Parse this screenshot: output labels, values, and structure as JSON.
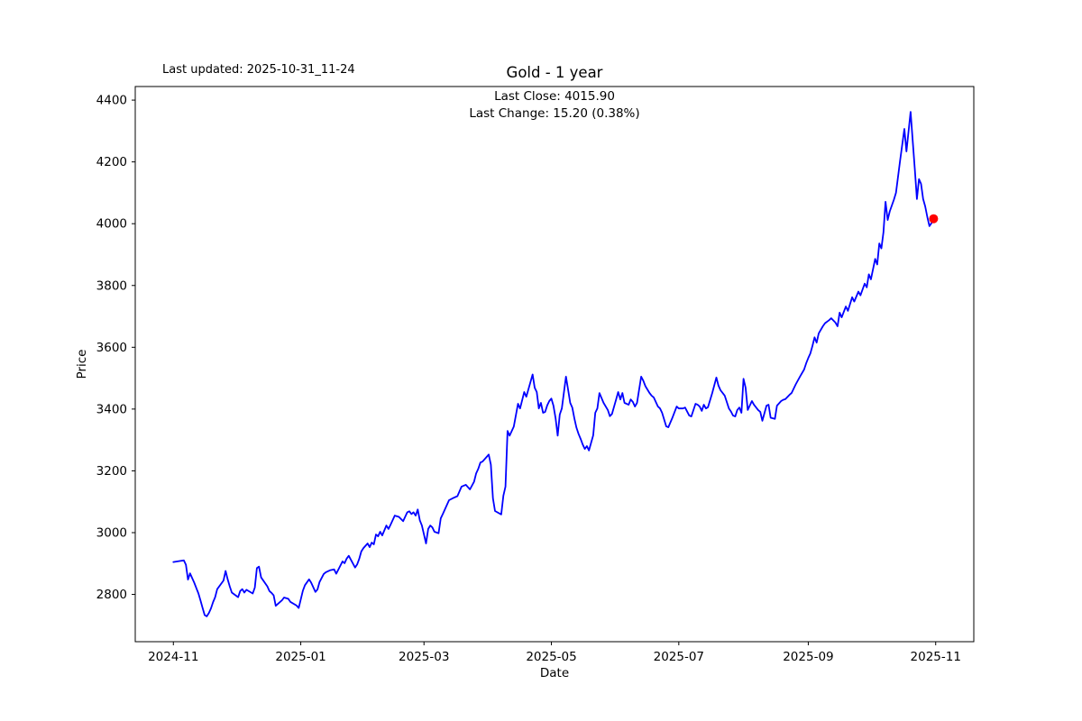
{
  "figure": {
    "last_updated_text": "Last updated: 2025-10-31_11-24",
    "title": "Gold - 1 year",
    "annotation_line1": "Last Close: 4015.90",
    "annotation_line2": "Last Change: 15.20 (0.38%)",
    "xlabel": "Date",
    "ylabel": "Price"
  },
  "chart_data": {
    "type": "line",
    "title": "Gold - 1 year",
    "symbol": "Gold",
    "range_label": "1 year",
    "xlabel": "Date",
    "ylabel": "Price",
    "last_updated": "2025-10-31_11-24",
    "last_close": 4015.9,
    "last_change": 15.2,
    "last_change_pct": 0.38,
    "line_color": "#0000ff",
    "last_point_marker_color": "#ff0000",
    "background_color": "#ffffff",
    "grid": false,
    "legend": "none",
    "x_unit": "days since 2024-11-01",
    "xlim": [
      -18.25,
      383.25
    ],
    "ylim": [
      2647,
      4444
    ],
    "y_ticks": [
      2800,
      3000,
      3200,
      3400,
      3600,
      3800,
      4000,
      4200,
      4400
    ],
    "x_ticks": [
      {
        "label": "2024-11",
        "day": 0
      },
      {
        "label": "2025-01",
        "day": 61
      },
      {
        "label": "2025-03",
        "day": 120
      },
      {
        "label": "2025-05",
        "day": 181
      },
      {
        "label": "2025-07",
        "day": 242
      },
      {
        "label": "2025-09",
        "day": 304
      },
      {
        "label": "2025-11",
        "day": 365
      }
    ],
    "points": [
      [
        0,
        2905
      ],
      [
        3,
        2908
      ],
      [
        5,
        2910
      ],
      [
        6,
        2896
      ],
      [
        7,
        2848
      ],
      [
        8,
        2868
      ],
      [
        10,
        2838
      ],
      [
        11,
        2820
      ],
      [
        12,
        2803
      ],
      [
        13,
        2780
      ],
      [
        14,
        2756
      ],
      [
        15,
        2733
      ],
      [
        16,
        2729
      ],
      [
        17,
        2740
      ],
      [
        18,
        2755
      ],
      [
        19,
        2775
      ],
      [
        20,
        2791
      ],
      [
        21,
        2817
      ],
      [
        24,
        2845
      ],
      [
        25,
        2876
      ],
      [
        26,
        2849
      ],
      [
        27,
        2826
      ],
      [
        28,
        2806
      ],
      [
        31,
        2791
      ],
      [
        32,
        2811
      ],
      [
        33,
        2817
      ],
      [
        34,
        2806
      ],
      [
        35,
        2815
      ],
      [
        38,
        2803
      ],
      [
        39,
        2822
      ],
      [
        40,
        2885
      ],
      [
        41,
        2890
      ],
      [
        42,
        2855
      ],
      [
        45,
        2826
      ],
      [
        46,
        2811
      ],
      [
        47,
        2805
      ],
      [
        48,
        2797
      ],
      [
        49,
        2763
      ],
      [
        52,
        2781
      ],
      [
        53,
        2790
      ],
      [
        55,
        2786
      ],
      [
        56,
        2776
      ],
      [
        59,
        2764
      ],
      [
        60,
        2756
      ],
      [
        62,
        2812
      ],
      [
        63,
        2830
      ],
      [
        65,
        2849
      ],
      [
        66,
        2838
      ],
      [
        68,
        2808
      ],
      [
        69,
        2816
      ],
      [
        70,
        2840
      ],
      [
        72,
        2866
      ],
      [
        73,
        2872
      ],
      [
        75,
        2878
      ],
      [
        77,
        2881
      ],
      [
        78,
        2867
      ],
      [
        81,
        2907
      ],
      [
        82,
        2901
      ],
      [
        83,
        2916
      ],
      [
        84,
        2925
      ],
      [
        87,
        2887
      ],
      [
        88,
        2897
      ],
      [
        89,
        2915
      ],
      [
        90,
        2939
      ],
      [
        91,
        2950
      ],
      [
        93,
        2965
      ],
      [
        94,
        2953
      ],
      [
        95,
        2968
      ],
      [
        96,
        2962
      ],
      [
        97,
        2994
      ],
      [
        98,
        2988
      ],
      [
        99,
        3003
      ],
      [
        100,
        2991
      ],
      [
        102,
        3023
      ],
      [
        103,
        3012
      ],
      [
        104,
        3026
      ],
      [
        106,
        3055
      ],
      [
        108,
        3051
      ],
      [
        110,
        3037
      ],
      [
        112,
        3066
      ],
      [
        113,
        3069
      ],
      [
        114,
        3060
      ],
      [
        115,
        3066
      ],
      [
        116,
        3055
      ],
      [
        117,
        3075
      ],
      [
        118,
        3040
      ],
      [
        119,
        3023
      ],
      [
        121,
        2965
      ],
      [
        122,
        3012
      ],
      [
        123,
        3023
      ],
      [
        124,
        3017
      ],
      [
        125,
        3003
      ],
      [
        127,
        2998
      ],
      [
        128,
        3046
      ],
      [
        129,
        3060
      ],
      [
        131,
        3090
      ],
      [
        132,
        3105
      ],
      [
        134,
        3112
      ],
      [
        136,
        3118
      ],
      [
        138,
        3149
      ],
      [
        139,
        3152
      ],
      [
        140,
        3155
      ],
      [
        142,
        3140
      ],
      [
        144,
        3165
      ],
      [
        145,
        3192
      ],
      [
        146,
        3207
      ],
      [
        147,
        3227
      ],
      [
        148,
        3230
      ],
      [
        150,
        3245
      ],
      [
        151,
        3253
      ],
      [
        152,
        3220
      ],
      [
        153,
        3111
      ],
      [
        154,
        3070
      ],
      [
        157,
        3059
      ],
      [
        158,
        3120
      ],
      [
        159,
        3149
      ],
      [
        160,
        3329
      ],
      [
        161,
        3314
      ],
      [
        163,
        3343
      ],
      [
        165,
        3417
      ],
      [
        166,
        3402
      ],
      [
        168,
        3455
      ],
      [
        169,
        3440
      ],
      [
        172,
        3512
      ],
      [
        173,
        3469
      ],
      [
        174,
        3455
      ],
      [
        175,
        3402
      ],
      [
        176,
        3420
      ],
      [
        177,
        3388
      ],
      [
        178,
        3391
      ],
      [
        179,
        3412
      ],
      [
        180,
        3426
      ],
      [
        181,
        3434
      ],
      [
        182,
        3411
      ],
      [
        183,
        3370
      ],
      [
        184,
        3314
      ],
      [
        185,
        3382
      ],
      [
        186,
        3402
      ],
      [
        188,
        3505
      ],
      [
        189,
        3462
      ],
      [
        190,
        3420
      ],
      [
        191,
        3405
      ],
      [
        192,
        3370
      ],
      [
        193,
        3340
      ],
      [
        194,
        3320
      ],
      [
        195,
        3303
      ],
      [
        196,
        3285
      ],
      [
        197,
        3271
      ],
      [
        198,
        3280
      ],
      [
        199,
        3266
      ],
      [
        201,
        3315
      ],
      [
        202,
        3388
      ],
      [
        203,
        3402
      ],
      [
        204,
        3452
      ],
      [
        206,
        3420
      ],
      [
        208,
        3397
      ],
      [
        209,
        3377
      ],
      [
        210,
        3384
      ],
      [
        212,
        3431
      ],
      [
        213,
        3455
      ],
      [
        214,
        3431
      ],
      [
        215,
        3452
      ],
      [
        216,
        3420
      ],
      [
        218,
        3414
      ],
      [
        219,
        3431
      ],
      [
        220,
        3423
      ],
      [
        221,
        3408
      ],
      [
        222,
        3420
      ],
      [
        224,
        3505
      ],
      [
        225,
        3492
      ],
      [
        226,
        3474
      ],
      [
        228,
        3452
      ],
      [
        229,
        3443
      ],
      [
        230,
        3438
      ],
      [
        232,
        3408
      ],
      [
        233,
        3402
      ],
      [
        234,
        3388
      ],
      [
        236,
        3344
      ],
      [
        237,
        3341
      ],
      [
        239,
        3373
      ],
      [
        241,
        3408
      ],
      [
        242,
        3402
      ],
      [
        244,
        3402
      ],
      [
        245,
        3405
      ],
      [
        247,
        3379
      ],
      [
        248,
        3376
      ],
      [
        250,
        3417
      ],
      [
        251,
        3414
      ],
      [
        252,
        3408
      ],
      [
        253,
        3394
      ],
      [
        254,
        3414
      ],
      [
        255,
        3402
      ],
      [
        256,
        3406
      ],
      [
        258,
        3452
      ],
      [
        260,
        3502
      ],
      [
        261,
        3476
      ],
      [
        262,
        3461
      ],
      [
        263,
        3452
      ],
      [
        264,
        3443
      ],
      [
        266,
        3402
      ],
      [
        267,
        3392
      ],
      [
        268,
        3379
      ],
      [
        269,
        3376
      ],
      [
        270,
        3397
      ],
      [
        271,
        3405
      ],
      [
        272,
        3388
      ],
      [
        273,
        3498
      ],
      [
        274,
        3469
      ],
      [
        275,
        3397
      ],
      [
        277,
        3426
      ],
      [
        278,
        3414
      ],
      [
        280,
        3397
      ],
      [
        281,
        3391
      ],
      [
        282,
        3362
      ],
      [
        284,
        3411
      ],
      [
        285,
        3414
      ],
      [
        286,
        3372
      ],
      [
        288,
        3368
      ],
      [
        289,
        3411
      ],
      [
        291,
        3426
      ],
      [
        292,
        3430
      ],
      [
        293,
        3432
      ],
      [
        295,
        3446
      ],
      [
        296,
        3452
      ],
      [
        298,
        3480
      ],
      [
        300,
        3505
      ],
      [
        302,
        3528
      ],
      [
        303,
        3548
      ],
      [
        304,
        3565
      ],
      [
        305,
        3580
      ],
      [
        306,
        3605
      ],
      [
        307,
        3632
      ],
      [
        308,
        3615
      ],
      [
        309,
        3645
      ],
      [
        311,
        3668
      ],
      [
        312,
        3678
      ],
      [
        314,
        3688
      ],
      [
        315,
        3694
      ],
      [
        317,
        3680
      ],
      [
        318,
        3668
      ],
      [
        319,
        3712
      ],
      [
        320,
        3697
      ],
      [
        322,
        3732
      ],
      [
        323,
        3718
      ],
      [
        325,
        3762
      ],
      [
        326,
        3748
      ],
      [
        328,
        3780
      ],
      [
        329,
        3768
      ],
      [
        331,
        3806
      ],
      [
        332,
        3794
      ],
      [
        333,
        3836
      ],
      [
        334,
        3820
      ],
      [
        336,
        3886
      ],
      [
        337,
        3868
      ],
      [
        338,
        3936
      ],
      [
        339,
        3920
      ],
      [
        340,
        3972
      ],
      [
        341,
        4071
      ],
      [
        342,
        4012
      ],
      [
        343,
        4040
      ],
      [
        345,
        4078
      ],
      [
        346,
        4100
      ],
      [
        348,
        4205
      ],
      [
        350,
        4307
      ],
      [
        351,
        4234
      ],
      [
        353,
        4362
      ],
      [
        354,
        4270
      ],
      [
        355,
        4176
      ],
      [
        356,
        4080
      ],
      [
        357,
        4144
      ],
      [
        358,
        4129
      ],
      [
        359,
        4080
      ],
      [
        360,
        4056
      ],
      [
        361,
        4021
      ],
      [
        362,
        3992
      ],
      [
        363,
        4002
      ],
      [
        364,
        4015.9
      ]
    ]
  }
}
